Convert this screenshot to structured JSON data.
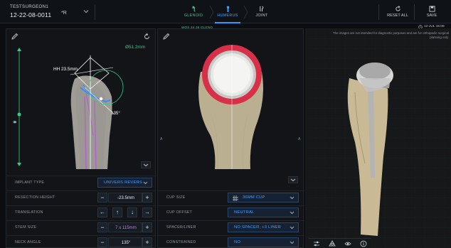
{
  "header": {
    "surgeon_name": "TESTSURGEON1",
    "case_id": "12-22-08-0011",
    "surgeon_initials": "*R",
    "tabs": [
      {
        "label": "GLENOID"
      },
      {
        "label": "HUMERUS"
      },
      {
        "label": "JOINT"
      }
    ],
    "glenoid_sub": "WOS 24 36 GLENO",
    "reset_label": "RESET ALL",
    "save_label": "SAVE",
    "date": "12-JUL 15:08"
  },
  "disclaimer": "The images are not intended for diagnostic purposes and are for orthopedic surgical planning only.",
  "left_view": {
    "diameter_label": "Ø51.2mm",
    "hh_label": "HH 23.5mm",
    "angle_label": "135°"
  },
  "properties_left": {
    "implant_type": {
      "label": "IMPLANT TYPE",
      "value": "UNIVERS REVERS"
    },
    "resection_height": {
      "label": "RESECTION HEIGHT",
      "value": "-23.5mm"
    },
    "translation": {
      "label": "TRANSLATION"
    },
    "stem_size": {
      "label": "STEM SIZE",
      "value": "7 x 115mm"
    },
    "neck_angle": {
      "label": "NECK ANGLE",
      "value": "135°"
    }
  },
  "middle_view": {
    "marker_a_left": "A",
    "marker_a_right": "A"
  },
  "properties_middle": {
    "cup_size": {
      "label": "CUP SIZE",
      "value": "36MM CUP"
    },
    "cup_offset": {
      "label": "CUP OFFSET",
      "value": "NEUTRAL"
    },
    "spacer_liner": {
      "label": "SPACER/LINER",
      "value": "NO SPACER, +3 LINER"
    },
    "constrained": {
      "label": "CONSTRAINED",
      "value": "NO"
    }
  },
  "colors": {
    "accent_blue": "#2f9bff",
    "accent_green": "#2fcf8a",
    "cup_red": "#d9304a",
    "bone": "#d9caa8"
  },
  "icons": [
    "chevron-down-icon",
    "glenoid-icon",
    "humerus-icon",
    "joint-icon",
    "reset-icon",
    "save-icon",
    "clock-icon",
    "pencil-icon",
    "rotate-icon",
    "adjust-icon",
    "shape-icon",
    "eye-icon",
    "info-icon"
  ]
}
